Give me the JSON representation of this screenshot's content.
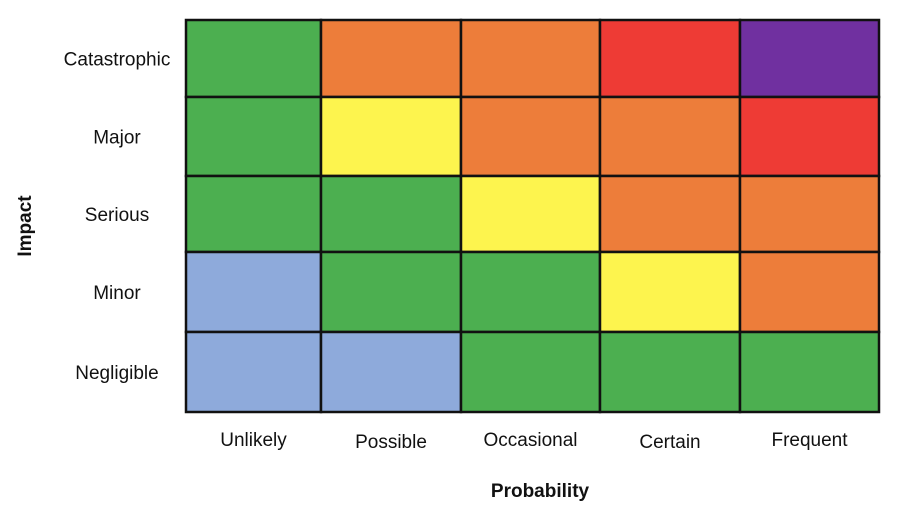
{
  "chart_data": {
    "type": "heatmap",
    "xlabel": "Probability",
    "ylabel": "Impact",
    "x_categories": [
      "Unlikely",
      "Possible",
      "Occasional",
      "Certain",
      "Frequent"
    ],
    "y_categories": [
      "Catastrophic",
      "Major",
      "Serious",
      "Minor",
      "Negligible"
    ],
    "color_map": {
      "blue": "#8eaadb",
      "green": "#4caf50",
      "yellow": "#fdf44e",
      "orange": "#ed7d3a",
      "red": "#ee3b35",
      "purple": "#7030a0"
    },
    "cells": [
      [
        "green",
        "orange",
        "orange",
        "red",
        "purple"
      ],
      [
        "green",
        "yellow",
        "orange",
        "orange",
        "red"
      ],
      [
        "green",
        "green",
        "yellow",
        "orange",
        "orange"
      ],
      [
        "blue",
        "green",
        "green",
        "yellow",
        "orange"
      ],
      [
        "blue",
        "blue",
        "green",
        "green",
        "green"
      ]
    ],
    "grid": true,
    "legend": "none"
  }
}
